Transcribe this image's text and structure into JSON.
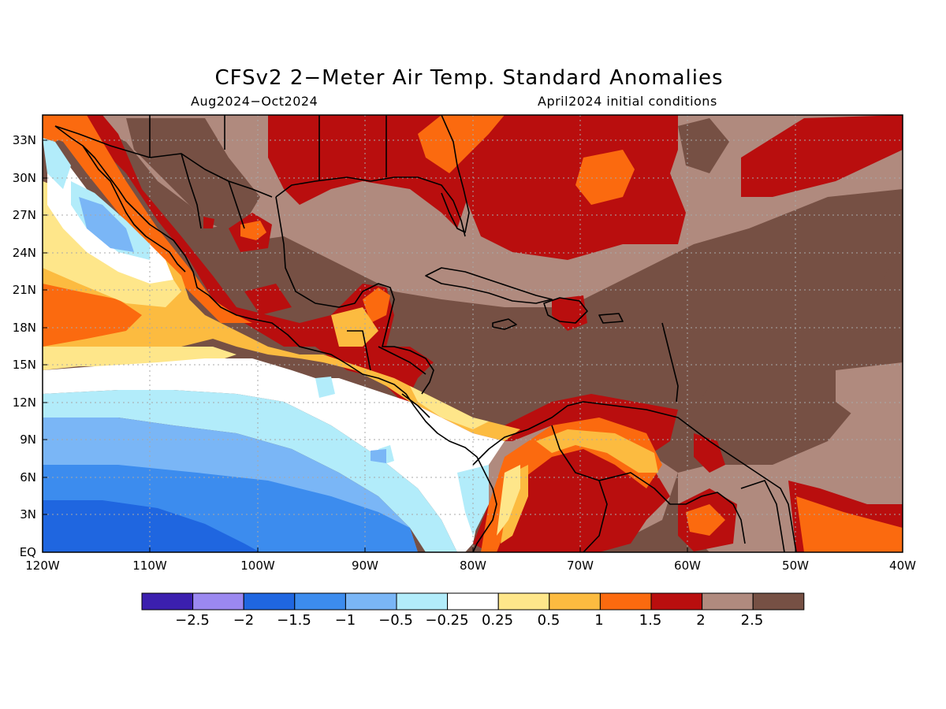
{
  "title": "CFSv2 2-Meter Air Temp. Standard Anomalies",
  "subtitle_left": "Aug2024-Oct2024",
  "subtitle_right": "April2024 initial conditions",
  "lat_labels": [
    "33N",
    "30N",
    "27N",
    "24N",
    "21N",
    "18N",
    "15N",
    "12N",
    "9N",
    "6N",
    "3N",
    "EQ"
  ],
  "lon_labels": [
    "120W",
    "110W",
    "100W",
    "90W",
    "80W",
    "70W",
    "60W",
    "50W",
    "40W"
  ],
  "colorbar": {
    "colors": [
      "#3b1fae",
      "#9b88f0",
      "#1f66e0",
      "#3c8cee",
      "#7ab6f6",
      "#b2ecfa",
      "#ffffff",
      "#fee68a",
      "#fcbb40",
      "#fb6a0f",
      "#b90e0e",
      "#b08a7e",
      "#765044"
    ],
    "labels": [
      "-2.5",
      "-2",
      "-1.5",
      "-1",
      "-0.5",
      "-0.25",
      "0.25",
      "0.5",
      "1",
      "1.5",
      "2",
      "2.5"
    ]
  },
  "legend_meaning": {
    "brown": "> 2.5",
    "mauve": "2 to 2.5",
    "dark-red": "1.5 to 2",
    "orange": "1 to 1.5",
    "light-orange": "0.5 to 1",
    "yellow": "0.25 to 0.5",
    "white": "-0.25 to 0.25",
    "pale-cyan": "-0.5 to -0.25",
    "light-blue": "-1 to -0.5",
    "blue": "-1.5 to -1",
    "deep-blue": "-2 to -1.5"
  }
}
